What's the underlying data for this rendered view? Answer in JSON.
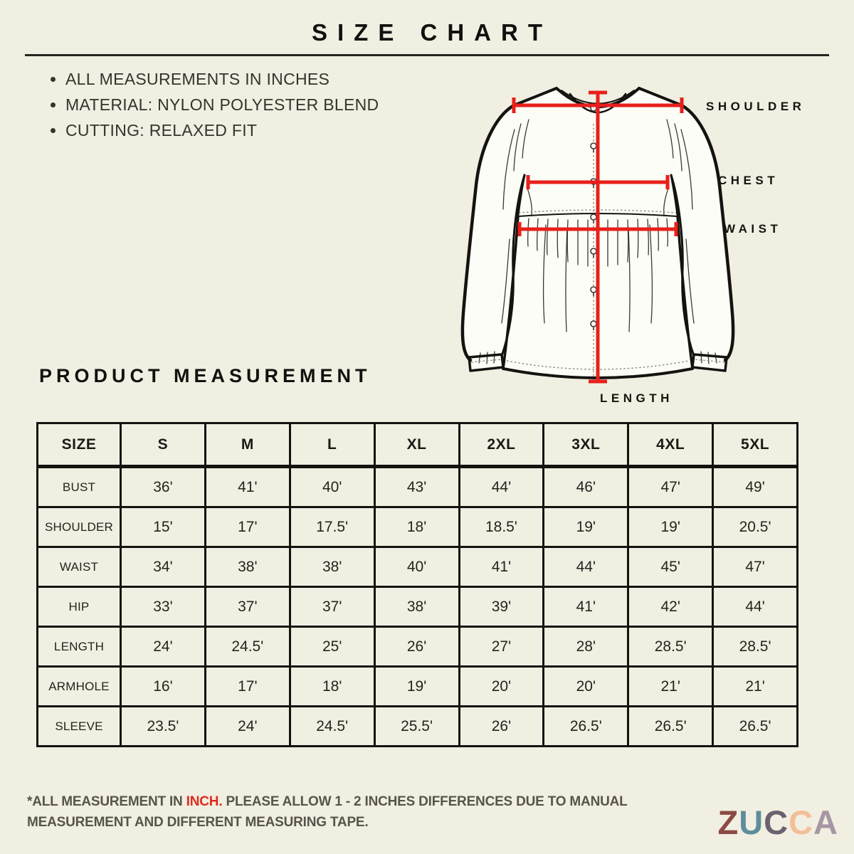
{
  "page": {
    "title": "SIZE CHART",
    "notes": [
      "ALL MEASUREMENTS IN INCHES",
      "MATERIAL: NYLON POLYESTER BLEND",
      "CUTTING: RELAXED FIT"
    ],
    "section_title": "PRODUCT MEASUREMENT",
    "background_color": "#f1efe1"
  },
  "diagram": {
    "labels": {
      "shoulder": "SHOULDER",
      "chest": "CHEST",
      "waist": "WAIST",
      "length": "LENGTH"
    },
    "line_color": "#e81f1b"
  },
  "chart_data": {
    "type": "table",
    "title": "PRODUCT MEASUREMENT",
    "columns": [
      "SIZE",
      "S",
      "M",
      "L",
      "XL",
      "2XL",
      "3XL",
      "4XL",
      "5XL"
    ],
    "rows": [
      {
        "label": "BUST",
        "values": [
          "36'",
          "41'",
          "40'",
          "43'",
          "44'",
          "46'",
          "47'",
          "49'"
        ]
      },
      {
        "label": "SHOULDER",
        "values": [
          "15'",
          "17'",
          "17.5'",
          "18'",
          "18.5'",
          "19'",
          "19'",
          "20.5'"
        ]
      },
      {
        "label": "WAIST",
        "values": [
          "34'",
          "38'",
          "38'",
          "40'",
          "41'",
          "44'",
          "45'",
          "47'"
        ]
      },
      {
        "label": "HIP",
        "values": [
          "33'",
          "37'",
          "37'",
          "38'",
          "39'",
          "41'",
          "42'",
          "44'"
        ]
      },
      {
        "label": "LENGTH",
        "values": [
          "24'",
          "24.5'",
          "25'",
          "26'",
          "27'",
          "28'",
          "28.5'",
          "28.5'"
        ]
      },
      {
        "label": "ARMHOLE",
        "values": [
          "16'",
          "17'",
          "18'",
          "19'",
          "20'",
          "20'",
          "21'",
          "21'"
        ]
      },
      {
        "label": "SLEEVE",
        "values": [
          "23.5'",
          "24'",
          "24.5'",
          "25.5'",
          "26'",
          "26.5'",
          "26.5'",
          "26.5'"
        ]
      }
    ]
  },
  "footer": {
    "note_prefix": "*ALL MEASUREMENT IN ",
    "note_highlight": "INCH.",
    "note_line1_rest": " PLEASE ALLOW 1 - 2 INCHES DIFFERENCES DUE TO MANUAL",
    "note_line2": "MEASUREMENT AND DIFFERENT MEASURING TAPE.",
    "highlight_color": "#e02a20"
  },
  "brand": {
    "name": "ZUCCA",
    "letters": [
      {
        "char": "Z",
        "color": "#8b4a45"
      },
      {
        "char": "U",
        "color": "#5e8d9c"
      },
      {
        "char": "C",
        "color": "#6c6170"
      },
      {
        "char": "C",
        "color": "#f2bf98"
      },
      {
        "char": "A",
        "color": "#a696a3"
      }
    ]
  }
}
